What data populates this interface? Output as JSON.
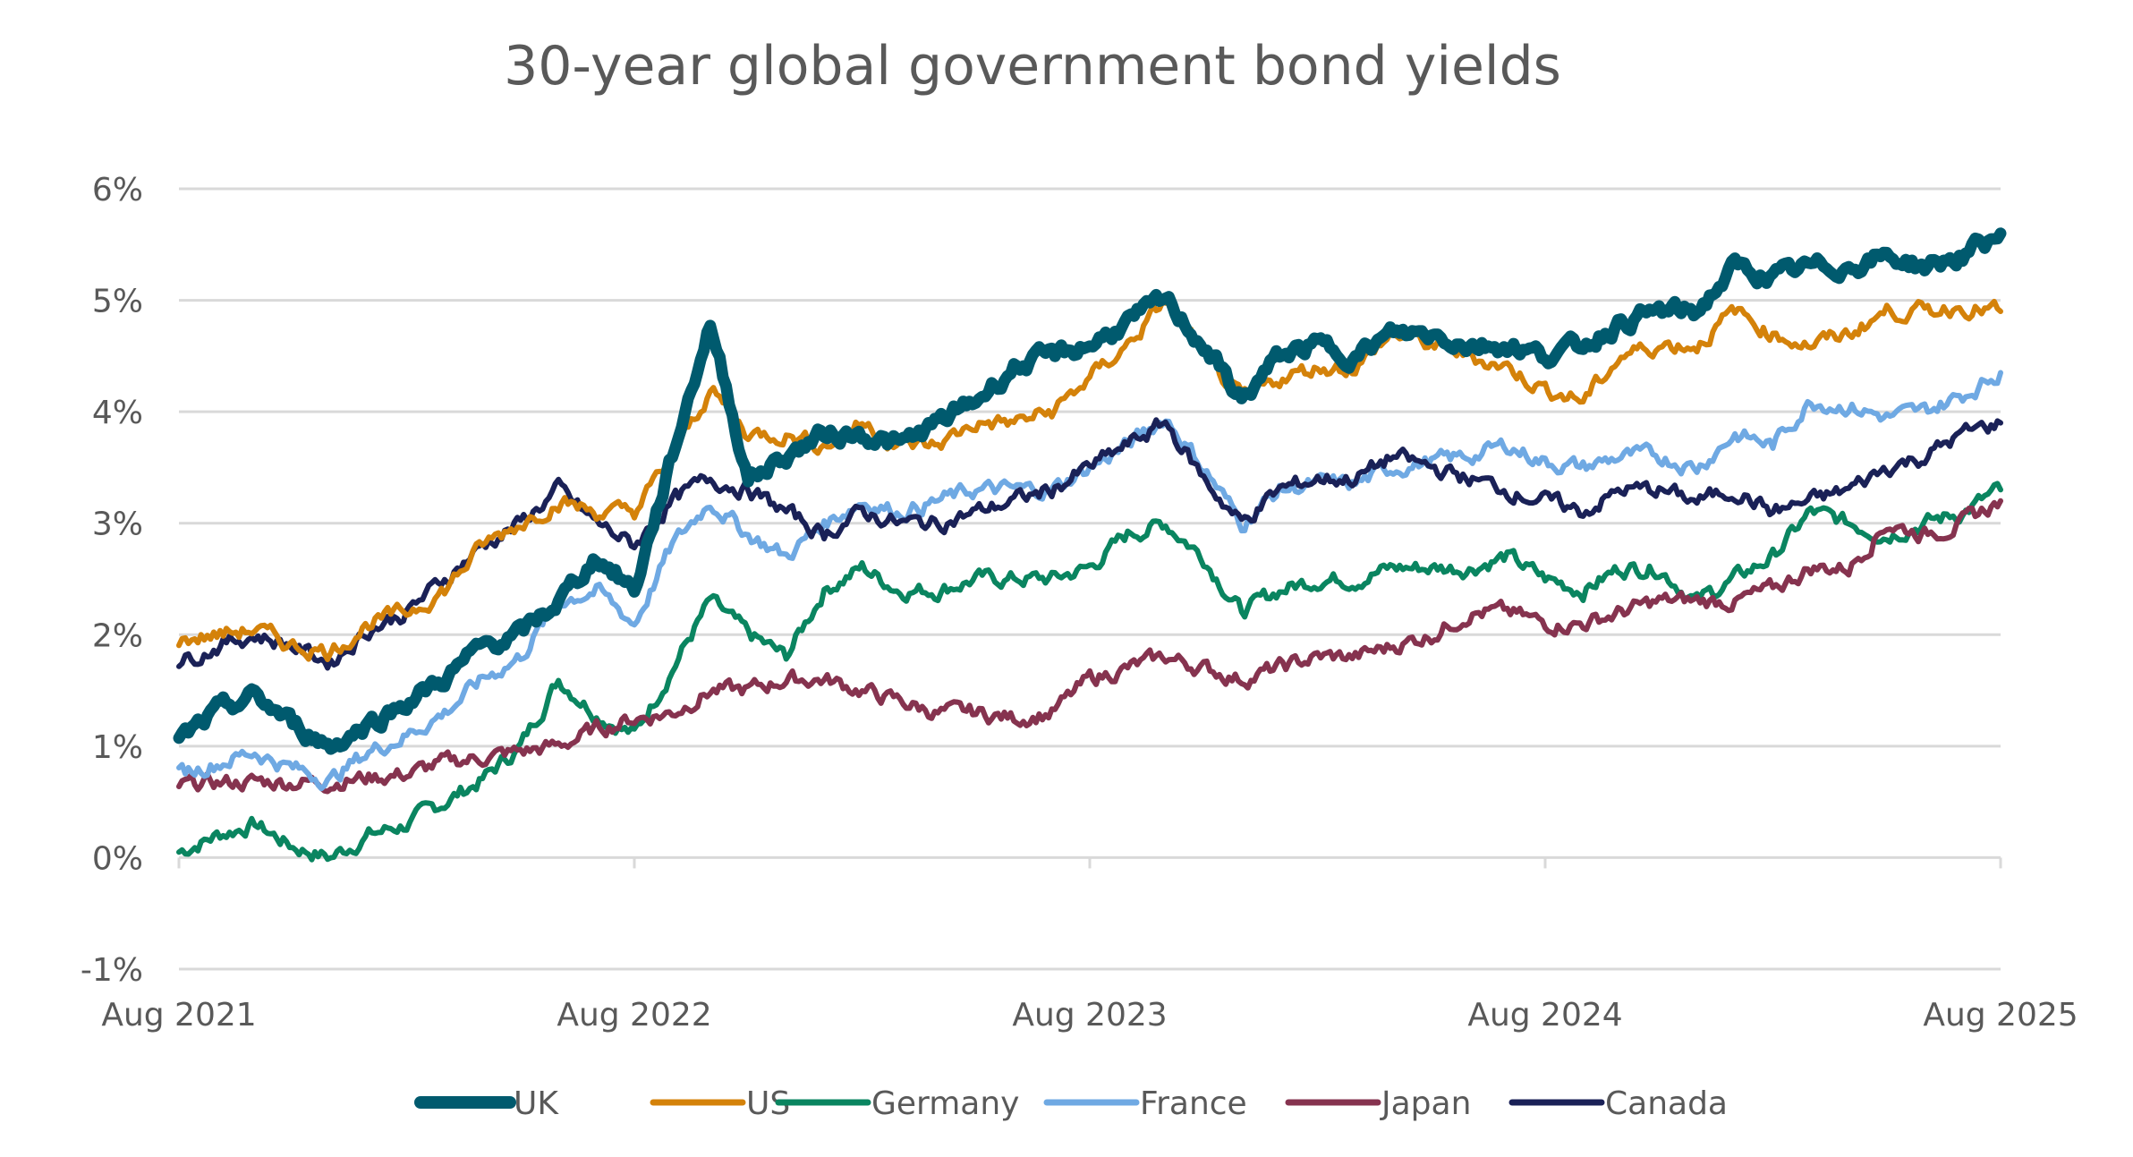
{
  "chart_data": {
    "type": "line",
    "title": "30-year global government bond yields",
    "xlabel": "",
    "ylabel": "",
    "ylim": [
      -1,
      6
    ],
    "yticks": [
      "-1%",
      "0%",
      "1%",
      "2%",
      "3%",
      "4%",
      "5%",
      "6%"
    ],
    "xticks": [
      "Aug  2021",
      "Aug  2022",
      "Aug  2023",
      "Aug  2024",
      "Aug  2025"
    ],
    "grid": "horizontal",
    "legend": "bottom",
    "x": [
      "2021-08",
      "2021-09",
      "2021-10",
      "2021-11",
      "2021-12",
      "2022-01",
      "2022-02",
      "2022-03",
      "2022-04",
      "2022-05",
      "2022-06",
      "2022-07",
      "2022-08",
      "2022-09",
      "2022-10",
      "2022-11",
      "2022-12",
      "2023-01",
      "2023-02",
      "2023-03",
      "2023-04",
      "2023-05",
      "2023-06",
      "2023-07",
      "2023-08",
      "2023-09",
      "2023-10",
      "2023-11",
      "2023-12",
      "2024-01",
      "2024-02",
      "2024-03",
      "2024-04",
      "2024-05",
      "2024-06",
      "2024-07",
      "2024-08",
      "2024-09",
      "2024-10",
      "2024-11",
      "2024-12",
      "2025-01",
      "2025-02",
      "2025-03",
      "2025-04",
      "2025-05",
      "2025-06",
      "2025-07",
      "2025-08"
    ],
    "series": [
      {
        "name": "UK",
        "color": "#005a6e",
        "thick": true,
        "values": [
          1.05,
          1.3,
          1.45,
          1.2,
          1.0,
          1.2,
          1.4,
          1.6,
          1.9,
          2.0,
          2.3,
          2.7,
          2.4,
          3.6,
          4.8,
          3.4,
          3.6,
          3.8,
          3.8,
          3.7,
          3.9,
          4.1,
          4.4,
          4.5,
          4.6,
          4.8,
          5.0,
          4.6,
          4.1,
          4.5,
          4.6,
          4.5,
          4.7,
          4.7,
          4.6,
          4.6,
          4.5,
          4.6,
          4.8,
          4.9,
          4.9,
          5.3,
          5.2,
          5.3,
          5.3,
          5.4,
          5.3,
          5.4,
          5.6
        ]
      },
      {
        "name": "US",
        "color": "#d4820a",
        "values": [
          1.95,
          2.0,
          2.05,
          1.9,
          1.85,
          2.1,
          2.2,
          2.4,
          2.8,
          3.0,
          3.2,
          3.1,
          3.1,
          3.6,
          4.2,
          3.8,
          3.8,
          3.7,
          3.9,
          3.7,
          3.7,
          3.9,
          3.9,
          4.0,
          4.3,
          4.6,
          5.0,
          4.5,
          4.1,
          4.3,
          4.4,
          4.4,
          4.7,
          4.6,
          4.5,
          4.4,
          4.2,
          4.1,
          4.5,
          4.6,
          4.6,
          4.9,
          4.7,
          4.6,
          4.7,
          4.9,
          4.9,
          4.95,
          4.9
        ]
      },
      {
        "name": "Germany",
        "color": "#0a8560",
        "values": [
          0.05,
          0.2,
          0.3,
          0.1,
          0.0,
          0.2,
          0.3,
          0.5,
          0.7,
          1.0,
          1.6,
          1.3,
          1.1,
          1.7,
          2.3,
          2.0,
          1.8,
          2.4,
          2.6,
          2.4,
          2.4,
          2.5,
          2.5,
          2.5,
          2.6,
          2.9,
          3.0,
          2.7,
          2.2,
          2.4,
          2.5,
          2.5,
          2.6,
          2.6,
          2.6,
          2.7,
          2.5,
          2.4,
          2.6,
          2.6,
          2.3,
          2.5,
          2.7,
          3.1,
          3.0,
          2.9,
          3.0,
          3.1,
          3.3
        ]
      },
      {
        "name": "France",
        "color": "#6fa9e3",
        "values": [
          0.75,
          0.85,
          0.95,
          0.8,
          0.7,
          0.95,
          1.1,
          1.3,
          1.6,
          1.8,
          2.3,
          2.4,
          2.1,
          2.8,
          3.2,
          2.9,
          2.7,
          3.0,
          3.2,
          3.1,
          3.2,
          3.3,
          3.3,
          3.3,
          3.5,
          3.7,
          3.95,
          3.5,
          3.0,
          3.3,
          3.35,
          3.35,
          3.5,
          3.55,
          3.6,
          3.7,
          3.55,
          3.5,
          3.6,
          3.6,
          3.5,
          3.8,
          3.7,
          4.1,
          4.05,
          3.95,
          4.0,
          4.15,
          4.35
        ]
      },
      {
        "name": "Japan",
        "color": "#86334f",
        "values": [
          0.65,
          0.67,
          0.68,
          0.68,
          0.68,
          0.72,
          0.75,
          0.85,
          0.9,
          0.95,
          1.0,
          1.15,
          1.25,
          1.3,
          1.5,
          1.5,
          1.6,
          1.6,
          1.5,
          1.4,
          1.3,
          1.3,
          1.25,
          1.3,
          1.6,
          1.7,
          1.8,
          1.7,
          1.6,
          1.7,
          1.8,
          1.8,
          1.9,
          2.0,
          2.2,
          2.2,
          2.1,
          2.1,
          2.2,
          2.3,
          2.3,
          2.3,
          2.4,
          2.6,
          2.6,
          3.0,
          2.9,
          3.0,
          3.2
        ]
      },
      {
        "name": "Canada",
        "color": "#1a2157",
        "values": [
          1.75,
          1.9,
          2.0,
          1.9,
          1.75,
          2.05,
          2.2,
          2.5,
          2.8,
          3.0,
          3.3,
          3.0,
          2.8,
          3.2,
          3.4,
          3.3,
          3.1,
          2.9,
          3.1,
          3.0,
          3.0,
          3.1,
          3.2,
          3.3,
          3.5,
          3.7,
          3.9,
          3.4,
          3.0,
          3.3,
          3.4,
          3.4,
          3.6,
          3.5,
          3.4,
          3.3,
          3.2,
          3.1,
          3.3,
          3.3,
          3.2,
          3.3,
          3.1,
          3.2,
          3.3,
          3.5,
          3.6,
          3.8,
          3.9
        ]
      }
    ]
  }
}
